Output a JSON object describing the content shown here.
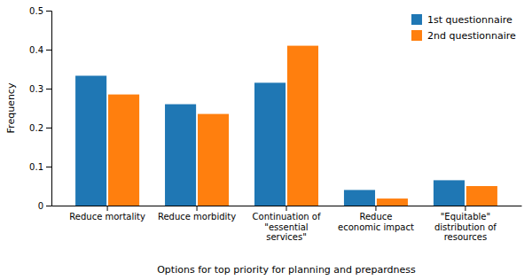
{
  "chart_data": {
    "type": "bar",
    "categories": [
      "Reduce mortality",
      "Reduce morbidity",
      "Continuation of\n\"essential\nservices\"",
      "Reduce\neconomic impact",
      "\"Equitable\"\ndistribution of\nresources"
    ],
    "series": [
      {
        "name": "1st questionnaire",
        "values": [
          0.333,
          0.26,
          0.315,
          0.04,
          0.065
        ]
      },
      {
        "name": "2nd questionnaire",
        "values": [
          0.285,
          0.235,
          0.41,
          0.018,
          0.05
        ]
      }
    ],
    "xlabel": "Options for top priority for planning and prepardness",
    "ylabel": "Frequency",
    "ylim": [
      0,
      0.5
    ],
    "yticks": [
      0,
      0.1,
      0.2,
      0.3,
      0.4,
      0.5
    ],
    "grid": false,
    "legend": "upper right"
  }
}
